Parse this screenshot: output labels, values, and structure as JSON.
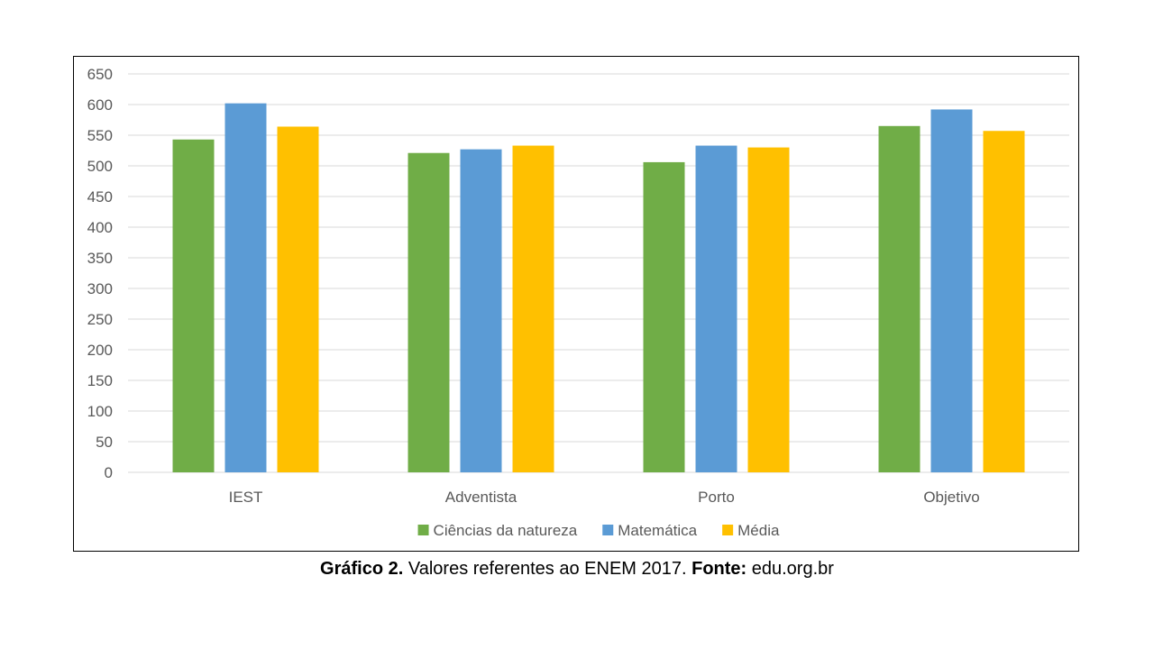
{
  "chart_data": {
    "type": "bar",
    "categories": [
      "IEST",
      "Adventista",
      "Porto",
      "Objetivo"
    ],
    "series": [
      {
        "name": "Ciências da natureza",
        "color": "#70ad47",
        "values": [
          543,
          521,
          506,
          565
        ]
      },
      {
        "name": "Matemática",
        "color": "#5b9bd5",
        "values": [
          602,
          527,
          533,
          592
        ]
      },
      {
        "name": "Média",
        "color": "#ffc000",
        "values": [
          564,
          533,
          530,
          557
        ]
      }
    ],
    "ylim": [
      0,
      650
    ],
    "yticks": [
      0,
      50,
      100,
      150,
      200,
      250,
      300,
      350,
      400,
      450,
      500,
      550,
      600,
      650
    ],
    "grid": true,
    "legend_position": "bottom"
  },
  "caption": {
    "label_bold": "Gráfico 2.",
    "text": " Valores referentes ao ENEM 2017. ",
    "source_bold": "Fonte:",
    "source_text": " edu.org.br"
  }
}
